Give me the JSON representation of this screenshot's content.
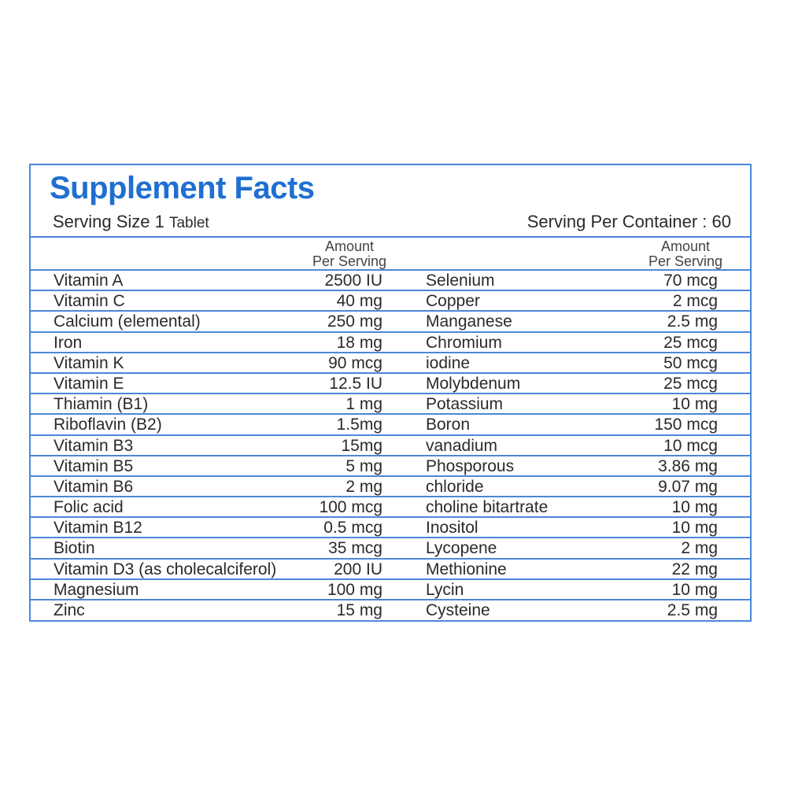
{
  "panel": {
    "title": "Supplement Facts",
    "serving_size_text": "Serving Size 1",
    "serving_size_unit": "Tablet",
    "serving_per_container": "Serving Per Container : 60",
    "amount_header_line1": "Amount",
    "amount_header_line2": "Per Serving"
  },
  "colors": {
    "accent": "#1f6fd0",
    "border": "#4a88d8",
    "text": "#2a2a2a"
  },
  "rows": [
    {
      "left_name": "Vitamin A",
      "left_amount": "2500  IU",
      "right_name": "Selenium",
      "right_amount": "70 mcg"
    },
    {
      "left_name": "Vitamin C",
      "left_amount": "40 mg",
      "right_name": "Copper",
      "right_amount": "2 mcg"
    },
    {
      "left_name": "Calcium (elemental)",
      "left_amount": "250 mg",
      "right_name": "Manganese",
      "right_amount": "2.5 mg"
    },
    {
      "left_name": "Iron",
      "left_amount": "18 mg",
      "right_name": "Chromium",
      "right_amount": "25 mcg"
    },
    {
      "left_name": "Vitamin K",
      "left_amount": "90 mcg",
      "right_name": "iodine",
      "right_amount": "50 mcg"
    },
    {
      "left_name": "Vitamin E",
      "left_amount": "12.5 IU",
      "right_name": "Molybdenum",
      "right_amount": "25 mcg"
    },
    {
      "left_name": "Thiamin (B1)",
      "left_amount": "1 mg",
      "right_name": "Potassium",
      "right_amount": "10 mg"
    },
    {
      "left_name": "Riboflavin (B2)",
      "left_amount": "1.5mg",
      "right_name": "Boron",
      "right_amount": "150 mcg"
    },
    {
      "left_name": "Vitamin B3",
      "left_amount": "15mg",
      "right_name": "vanadium",
      "right_amount": "10 mcg"
    },
    {
      "left_name": "Vitamin B5",
      "left_amount": "5 mg",
      "right_name": "Phosporous",
      "right_amount": "3.86 mg"
    },
    {
      "left_name": "Vitamin B6",
      "left_amount": "2 mg",
      "right_name": "chloride",
      "right_amount": "9.07 mg"
    },
    {
      "left_name": "Folic acid",
      "left_amount": "100 mcg",
      "right_name": "choline bitartrate",
      "right_amount": "10 mg"
    },
    {
      "left_name": "Vitamin B12",
      "left_amount": "0.5 mcg",
      "right_name": "Inositol",
      "right_amount": "10 mg"
    },
    {
      "left_name": "Biotin",
      "left_amount": "35 mcg",
      "right_name": "Lycopene",
      "right_amount": "2 mg"
    },
    {
      "left_name": "Vitamin D3 (as cholecalciferol)",
      "left_amount": "200 IU",
      "right_name": "Methionine",
      "right_amount": "22 mg"
    },
    {
      "left_name": "Magnesium",
      "left_amount": "100 mg",
      "right_name": "Lycin",
      "right_amount": "10 mg"
    },
    {
      "left_name": "Zinc",
      "left_amount": "15 mg",
      "right_name": "Cysteine",
      "right_amount": "2.5 mg"
    }
  ]
}
